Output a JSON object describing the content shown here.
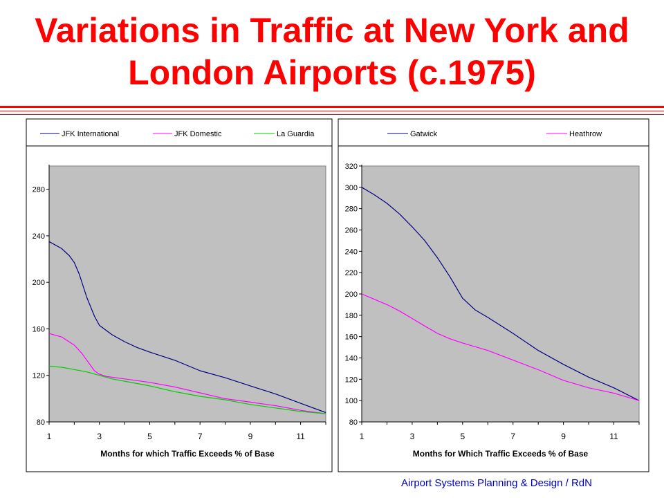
{
  "title": "Variations in Traffic at New York and London Airports (c.1975)",
  "footer": "Airport Systems Planning & Design / RdN",
  "colors": {
    "title": "#ff0000",
    "rule": "#ff0000",
    "footer": "#0000cc",
    "plot_area": "#c0c0c0"
  },
  "chart_data": [
    {
      "type": "line",
      "title": "",
      "xlabel": "Months for which Traffic Exceeds % of Base",
      "ylabel": "",
      "xlim": [
        1,
        12
      ],
      "ylim": [
        80,
        300
      ],
      "x_ticks": [
        1,
        3,
        5,
        7,
        9,
        11
      ],
      "y_ticks": [
        80,
        120,
        160,
        200,
        240,
        280
      ],
      "grid": false,
      "legend": "top",
      "series": [
        {
          "name": "JFK International",
          "color": "#000080",
          "x": [
            1,
            1.5,
            1.8,
            2,
            2.2,
            2.5,
            2.8,
            3,
            3.5,
            4,
            4.5,
            5,
            6,
            7,
            8,
            9,
            10,
            11,
            12
          ],
          "y": [
            235,
            229,
            223,
            217,
            207,
            187,
            171,
            163,
            155,
            149,
            144,
            140,
            133,
            124,
            118,
            111,
            104,
            96,
            88
          ]
        },
        {
          "name": "JFK Domestic",
          "color": "#ff00ff",
          "x": [
            1,
            1.5,
            2,
            2.3,
            2.6,
            2.8,
            3,
            3.3,
            4,
            5,
            6,
            7,
            8,
            9,
            10,
            11,
            12
          ],
          "y": [
            156,
            153,
            146,
            139,
            130,
            124,
            121,
            119,
            117,
            114,
            110,
            105,
            100,
            97,
            94,
            90,
            87
          ]
        },
        {
          "name": "La Guardia",
          "color": "#00cc00",
          "x": [
            1,
            1.5,
            2,
            2.5,
            3,
            3.5,
            4,
            5,
            6,
            7,
            8,
            9,
            10,
            11,
            12
          ],
          "y": [
            128,
            127,
            125,
            123,
            120,
            117,
            115,
            111,
            106,
            102,
            99,
            95,
            92,
            89,
            87
          ]
        }
      ]
    },
    {
      "type": "line",
      "title": "",
      "xlabel": "Months for Which Traffic Exceeds % of Base",
      "ylabel": "",
      "xlim": [
        1,
        12
      ],
      "ylim": [
        80,
        320
      ],
      "x_ticks": [
        1,
        3,
        5,
        7,
        9,
        11
      ],
      "y_ticks": [
        80,
        100,
        120,
        140,
        160,
        180,
        200,
        220,
        240,
        260,
        280,
        300,
        320
      ],
      "grid": false,
      "legend": "top",
      "series": [
        {
          "name": "Gatwick",
          "color": "#000080",
          "x": [
            1,
            1.5,
            2,
            2.5,
            3,
            3.5,
            4,
            4.5,
            5,
            5.5,
            6,
            7,
            8,
            9,
            10,
            11,
            12
          ],
          "y": [
            300,
            293,
            285,
            275,
            263,
            250,
            234,
            216,
            196,
            185,
            178,
            163,
            147,
            134,
            122,
            112,
            100
          ]
        },
        {
          "name": "Heathrow",
          "color": "#ff00ff",
          "x": [
            1,
            1.5,
            2,
            2.5,
            3,
            3.5,
            4,
            4.5,
            5,
            6,
            7,
            8,
            9,
            10,
            11,
            12
          ],
          "y": [
            200,
            195,
            190,
            184,
            177,
            170,
            163,
            158,
            154,
            147,
            138,
            129,
            119,
            112,
            107,
            100
          ]
        }
      ]
    }
  ]
}
